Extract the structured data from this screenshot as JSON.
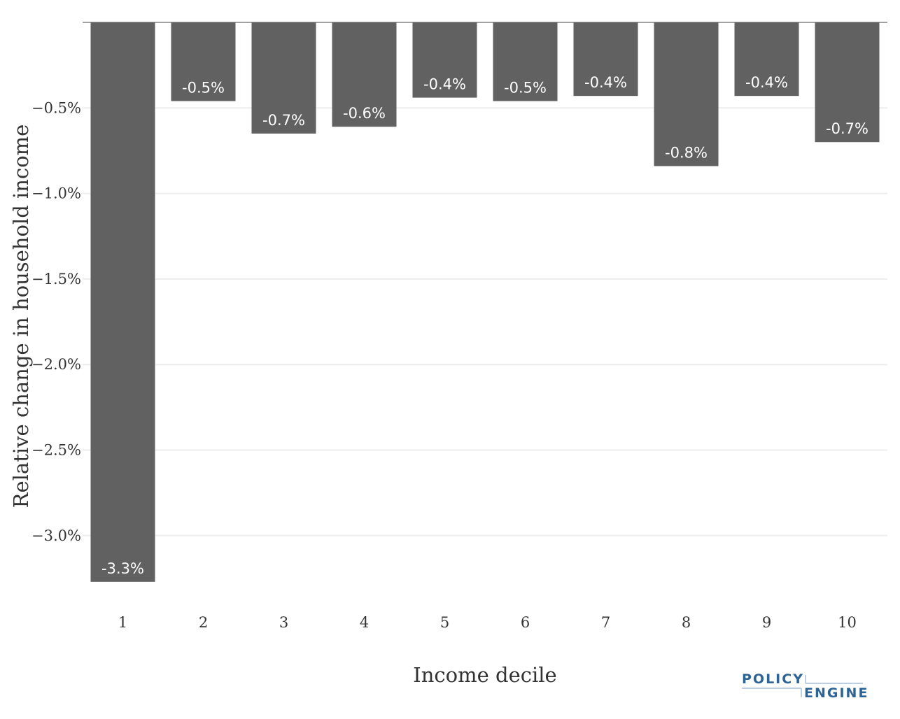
{
  "chart_data": {
    "type": "bar",
    "xlabel": "Income decile",
    "ylabel": "Relative change in household income",
    "categories": [
      "1",
      "2",
      "3",
      "4",
      "5",
      "6",
      "7",
      "8",
      "9",
      "10"
    ],
    "values": [
      -3.27,
      -0.46,
      -0.65,
      -0.61,
      -0.44,
      -0.46,
      -0.43,
      -0.84,
      -0.43,
      -0.7
    ],
    "data_labels": [
      "-3.3%",
      "-0.5%",
      "-0.7%",
      "-0.6%",
      "-0.4%",
      "-0.5%",
      "-0.4%",
      "-0.8%",
      "-0.4%",
      "-0.7%"
    ],
    "y_ticks": [
      -0.5,
      -1.0,
      -1.5,
      -2.0,
      -2.5,
      -3.0
    ],
    "y_tick_labels": [
      "−0.5%",
      "−1.0%",
      "−1.5%",
      "−2.0%",
      "−2.5%",
      "−3.0%"
    ],
    "ylim": [
      -3.35,
      0
    ],
    "grid": true,
    "bar_color": "#616161",
    "gridline_color": "#eeeeee"
  },
  "branding": {
    "logo_line1": "POLICY",
    "logo_line2": "ENGINE",
    "logo_color": "#2c6496",
    "logo_accent_color": "#bdd0e3"
  }
}
